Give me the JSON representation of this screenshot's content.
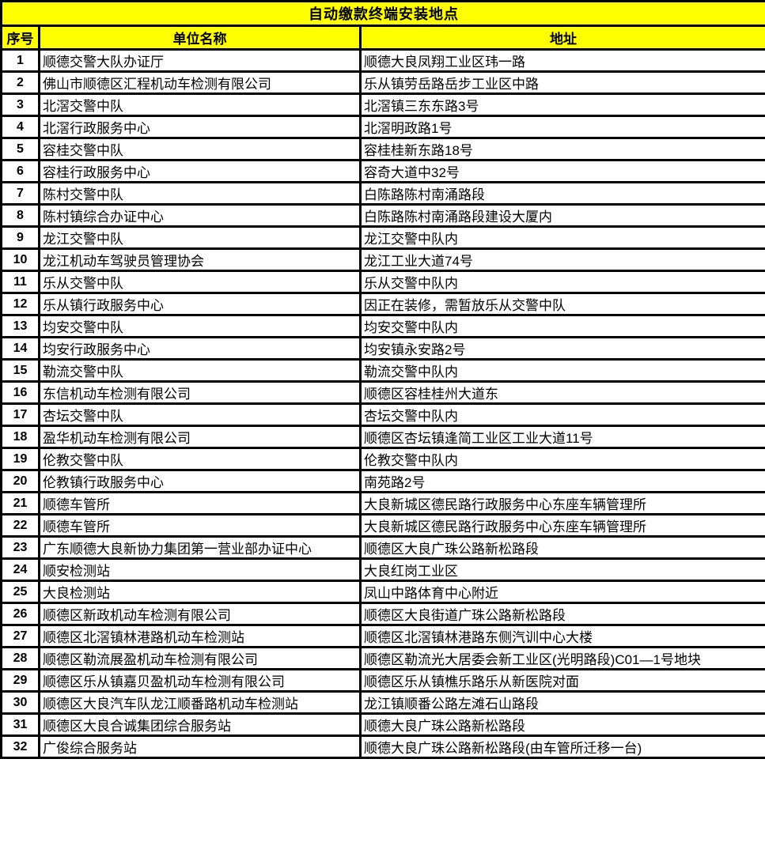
{
  "colors": {
    "header_bg": "#FFFF00",
    "border": "#000000",
    "text": "#000000",
    "row_bg": "#FFFFFF"
  },
  "table": {
    "title": "自动缴款终端安装地点",
    "headers": [
      "序号",
      "单位名称",
      "地址"
    ],
    "rows": [
      {
        "seq": "1",
        "unit": "顺德交警大队办证厅",
        "address": "顺德大良凤翔工业区玮一路"
      },
      {
        "seq": "2",
        "unit": "佛山市顺德区汇程机动车检测有限公司",
        "address": "乐从镇劳岳路岳步工业区中路"
      },
      {
        "seq": "3",
        "unit": "北滘交警中队",
        "address": "北滘镇三东东路3号"
      },
      {
        "seq": "4",
        "unit": "北滘行政服务中心",
        "address": "北滘明政路1号"
      },
      {
        "seq": "5",
        "unit": "容桂交警中队",
        "address": "容桂桂新东路18号"
      },
      {
        "seq": "6",
        "unit": "容桂行政服务中心",
        "address": "容奇大道中32号"
      },
      {
        "seq": "7",
        "unit": "陈村交警中队",
        "address": "白陈路陈村南涌路段"
      },
      {
        "seq": "8",
        "unit": "陈村镇综合办证中心",
        "address": "白陈路陈村南涌路段建设大厦内"
      },
      {
        "seq": "9",
        "unit": "龙江交警中队",
        "address": "龙江交警中队内"
      },
      {
        "seq": "10",
        "unit": "龙江机动车驾驶员管理协会",
        "address": "龙江工业大道74号"
      },
      {
        "seq": "11",
        "unit": "乐从交警中队",
        "address": "乐从交警中队内"
      },
      {
        "seq": "12",
        "unit": "乐从镇行政服务中心",
        "address": "因正在装修，需暂放乐从交警中队"
      },
      {
        "seq": "13",
        "unit": "均安交警中队",
        "address": "均安交警中队内"
      },
      {
        "seq": "14",
        "unit": "均安行政服务中心",
        "address": "均安镇永安路2号"
      },
      {
        "seq": "15",
        "unit": "勒流交警中队",
        "address": "勒流交警中队内"
      },
      {
        "seq": "16",
        "unit": "东信机动车检测有限公司",
        "address": "顺德区容桂桂州大道东"
      },
      {
        "seq": "17",
        "unit": "杏坛交警中队",
        "address": "杏坛交警中队内"
      },
      {
        "seq": "18",
        "unit": "盈华机动车检测有限公司",
        "address": "顺德区杏坛镇逢简工业区工业大道11号"
      },
      {
        "seq": "19",
        "unit": "伦教交警中队",
        "address": "伦教交警中队内"
      },
      {
        "seq": "20",
        "unit": "伦教镇行政服务中心",
        "address": "南苑路2号"
      },
      {
        "seq": "21",
        "unit": "顺德车管所",
        "address": "大良新城区德民路行政服务中心东座车辆管理所"
      },
      {
        "seq": "22",
        "unit": "顺德车管所",
        "address": "大良新城区德民路行政服务中心东座车辆管理所"
      },
      {
        "seq": "23",
        "unit": "广东顺德大良新协力集团第一营业部办证中心",
        "address": "顺德区大良广珠公路新松路段"
      },
      {
        "seq": "24",
        "unit": "顺安检测站",
        "address": "大良红岗工业区"
      },
      {
        "seq": "25",
        "unit": "大良检测站",
        "address": "凤山中路体育中心附近"
      },
      {
        "seq": "26",
        "unit": "顺德区新政机动车检测有限公司",
        "address": "顺德区大良街道广珠公路新松路段"
      },
      {
        "seq": "27",
        "unit": "顺德区北滘镇林港路机动车检测站",
        "address": "顺德区北滘镇林港路东侧汽训中心大楼"
      },
      {
        "seq": "28",
        "unit": "顺德区勒流展盈机动车检测有限公司",
        "address": "顺德区勒流光大居委会新工业区(光明路段)C01—1号地块"
      },
      {
        "seq": "29",
        "unit": "顺德区乐从镇嘉贝盈机动车检测有限公司",
        "address": "顺德区乐从镇樵乐路乐从新医院对面"
      },
      {
        "seq": "30",
        "unit": "顺德区大良汽车队龙江顺番路机动车检测站",
        "address": "龙江镇顺番公路左滩石山路段"
      },
      {
        "seq": "31",
        "unit": "顺德区大良合诚集团综合服务站",
        "address": "顺德大良广珠公路新松路段"
      },
      {
        "seq": "32",
        "unit": "广俊综合服务站",
        "address": "顺德大良广珠公路新松路段(由车管所迁移一台)"
      }
    ]
  }
}
